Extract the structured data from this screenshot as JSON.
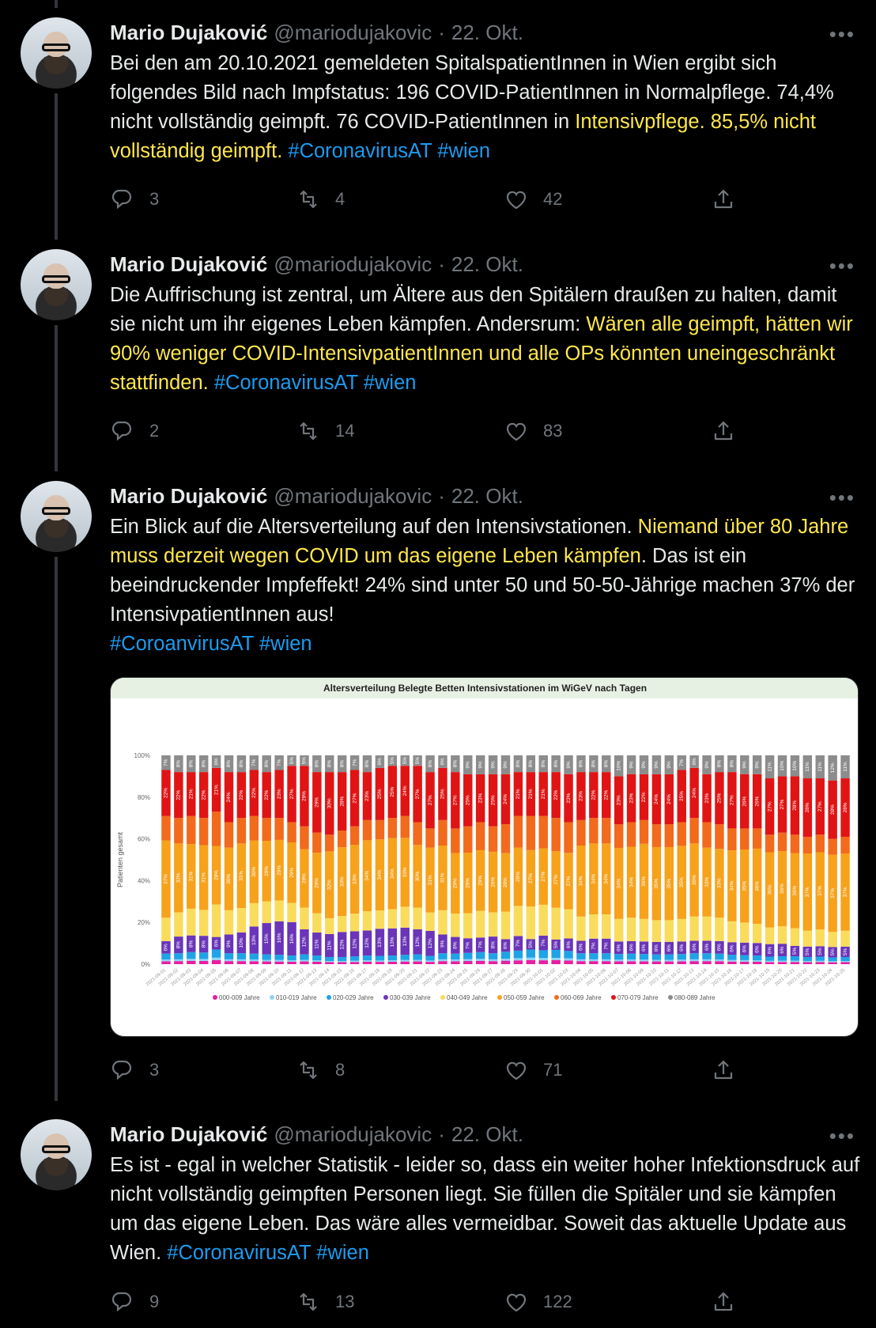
{
  "tweets": [
    {
      "author": "Mario Dujaković",
      "handle": "@mariodujakovic",
      "sep": "·",
      "date": "22. Okt.",
      "text_parts": [
        {
          "t": "Bei den am 20.10.2021 gemeldeten SpitalspatientInnen in Wien ergibt sich folgendes Bild nach Impfstatus: 196 COVID-PatientInnen in Normalpflege. 74,4% nicht vollständig geimpft. 76 COVID-PatientInnen in ",
          "s": "n"
        },
        {
          "t": "Intensivpflege. 85,5% nicht vollständig geimpft.",
          "s": "hl"
        },
        {
          "t": " ",
          "s": "n"
        },
        {
          "t": "#CoronavirusAT",
          "s": "tag"
        },
        {
          "t": " ",
          "s": "n"
        },
        {
          "t": "#wien",
          "s": "tag"
        }
      ],
      "replies": "3",
      "retweets": "4",
      "likes": "42"
    },
    {
      "author": "Mario Dujaković",
      "handle": "@mariodujakovic",
      "sep": "·",
      "date": "22. Okt.",
      "text_parts": [
        {
          "t": "Die Auffrischung ist zentral, um Ältere aus den Spitälern draußen zu halten, damit sie nicht um ihr eigenes Leben kämpfen. Andersrum: ",
          "s": "n"
        },
        {
          "t": "Wären alle geimpft, hätten wir 90% weniger COVID-IntensivpatientInnen und alle OPs könnten uneingeschränkt stattfinden.",
          "s": "hl"
        },
        {
          "t": " ",
          "s": "n"
        },
        {
          "t": "#CoronavirusAT",
          "s": "tag"
        },
        {
          "t": " ",
          "s": "n"
        },
        {
          "t": "#wien",
          "s": "tag"
        }
      ],
      "replies": "2",
      "retweets": "14",
      "likes": "83"
    },
    {
      "author": "Mario Dujaković",
      "handle": "@mariodujakovic",
      "sep": "·",
      "date": "22. Okt.",
      "text_parts": [
        {
          "t": "Ein Blick auf die Altersverteilung auf den Intensivstationen. ",
          "s": "n"
        },
        {
          "t": "Niemand über 80 Jahre muss derzeit wegen COVID um das eigene Leben kämpfen",
          "s": "hl"
        },
        {
          "t": ". Das ist ein beeindruckender Impfeffekt! 24% sind unter 50 und 50-50-Jährige machen 37% der IntensivpatientInnen aus!",
          "s": "n"
        },
        {
          "t": "BR",
          "s": "br"
        },
        {
          "t": "#CoroanvirusAT",
          "s": "tag"
        },
        {
          "t": " ",
          "s": "n"
        },
        {
          "t": "#wien",
          "s": "tag"
        }
      ],
      "replies": "3",
      "retweets": "8",
      "likes": "71"
    },
    {
      "author": "Mario Dujaković",
      "handle": "@mariodujakovic",
      "sep": "·",
      "date": "22. Okt.",
      "text_parts": [
        {
          "t": "Es ist - egal in welcher Statistik - leider so, dass ein weiter hoher Infektionsdruck auf nicht vollständig geimpften Personen liegt. Sie füllen die Spitäler und sie kämpfen um das eigene Leben. Das wäre alles vermeidbar. Soweit das aktuelle Update aus Wien. ",
          "s": "n"
        },
        {
          "t": "#CoronavirusAT",
          "s": "tag"
        },
        {
          "t": " ",
          "s": "n"
        },
        {
          "t": "#wien",
          "s": "tag"
        }
      ],
      "replies": "9",
      "retweets": "13",
      "likes": "122"
    }
  ],
  "icons": [
    "reply-icon",
    "retweet-icon",
    "like-icon",
    "share-icon",
    "more-icon"
  ],
  "colors": {
    "highlight": "#ffe74d",
    "hashtag": "#1d9bf0",
    "muted": "#71767b"
  },
  "chart_data": {
    "type": "bar",
    "title": "Altersverteilung Belegte Betten Intensivstationen im WiGeV nach Tagen",
    "ylabel": "Patienten gesamt",
    "ylim": [
      0,
      100
    ],
    "yticks": [
      "0%",
      "20%",
      "40%",
      "60%",
      "80%",
      "100%"
    ],
    "stacked": "percent",
    "legend_position": "bottom",
    "series_names": [
      "000-009 Jahre",
      "010-019 Jahre",
      "020-029 Jahre",
      "030-039 Jahre",
      "040-049 Jahre",
      "050-059 Jahre",
      "060-069 Jahre",
      "070-079 Jahre",
      "080-089 Jahre"
    ],
    "series_colors": [
      "#e91ea0",
      "#8fd3f4",
      "#1fa3e6",
      "#6a35b8",
      "#f9dc5c",
      "#f7a21b",
      "#f26a1b",
      "#e01414",
      "#8c8c8c"
    ],
    "bar_count": 55,
    "top_labels": [
      "7%",
      "8%",
      "8%",
      "8%",
      "6%",
      "8%",
      "8%",
      "7%",
      "8%",
      "7%",
      "5%",
      "5%",
      "8%",
      "8%",
      "8%",
      "7%",
      "8%",
      "6%",
      "5%",
      "5%",
      "5%",
      "8%",
      "6%",
      "8%",
      "9%",
      "9%",
      "9%",
      "9%",
      "8%",
      "8%",
      "8%",
      "8%",
      "9%",
      "8%",
      "8%",
      "8%",
      "10%",
      "9%",
      "9%",
      "9%",
      "9%",
      "7%",
      "6%",
      "9%",
      "8%",
      "8%",
      "9%",
      "9%",
      "11%",
      "10%",
      "10%",
      "11%",
      "11%",
      "12%",
      "11%"
    ],
    "age70_labels": [
      "22%",
      "22%",
      "21%",
      "22%",
      "21%",
      "24%",
      "22%",
      "22%",
      "22%",
      "23%",
      "27%",
      "29%",
      "29%",
      "30%",
      "28%",
      "27%",
      "23%",
      "25%",
      "25%",
      "24%",
      "27%",
      "27%",
      "25%",
      "27%",
      "25%",
      "23%",
      "25%",
      "24%",
      "21%",
      "21%",
      "21%",
      "22%",
      "23%",
      "23%",
      "22%",
      "22%",
      "23%",
      "23%",
      "22%",
      "24%",
      "24%",
      "25%",
      "24%",
      "23%",
      "25%",
      "27%",
      "26%",
      "26%",
      "27%",
      "27%",
      "28%",
      "28%",
      "27%",
      "28%",
      "28%"
    ],
    "age50_labels": [
      "37%",
      "33%",
      "31%",
      "31%",
      "28%",
      "30%",
      "31%",
      "30%",
      "29%",
      "29%",
      "29%",
      "28%",
      "29%",
      "32%",
      "33%",
      "33%",
      "34%",
      "34%",
      "34%",
      "33%",
      "30%",
      "31%",
      "31%",
      "29%",
      "29%",
      "29%",
      "29%",
      "28%",
      "28%",
      "27%",
      "27%",
      "27%",
      "27%",
      "34%",
      "34%",
      "34%",
      "34%",
      "34%",
      "36%",
      "35%",
      "35%",
      "35%",
      "35%",
      "33%",
      "33%",
      "34%",
      "35%",
      "36%",
      "36%",
      "36%",
      "36%",
      "37%",
      "37%",
      "37%",
      "37%"
    ],
    "age30_labels": [
      "6%",
      "8%",
      "8%",
      "8%",
      "6%",
      "9%",
      "10%",
      "13%",
      "15%",
      "16%",
      "16%",
      "12%",
      "11%",
      "11%",
      "12%",
      "12%",
      "12%",
      "13%",
      "13%",
      "13%",
      "12%",
      "12%",
      "9%",
      "8%",
      "7%",
      "7%",
      "8%",
      "6%",
      "7%",
      "5%",
      "7%",
      "5%",
      "6%",
      "6%",
      "7%",
      "7%",
      "6%",
      "6%",
      "6%",
      "6%",
      "6%",
      "6%",
      "6%",
      "6%",
      "6%",
      "6%",
      "6%",
      "6%",
      "6%",
      "6%",
      "5%",
      "5%",
      "5%",
      "5%",
      "5%"
    ],
    "x_dates": [
      "2021-09-01",
      "2021-09-02",
      "2021-09-03",
      "2021-09-04",
      "2021-09-05",
      "2021-09-06",
      "2021-09-07",
      "2021-09-08",
      "2021-09-09",
      "2021-09-10",
      "2021-09-11",
      "2021-09-12",
      "2021-09-13",
      "2021-09-14",
      "2021-09-15",
      "2021-09-16",
      "2021-09-17",
      "2021-09-18",
      "2021-09-19",
      "2021-09-20",
      "2021-09-21",
      "2021-09-22",
      "2021-09-23",
      "2021-09-24",
      "2021-09-25",
      "2021-09-26",
      "2021-09-27",
      "2021-09-28",
      "2021-09-29",
      "2021-09-30",
      "2021-10-01",
      "2021-10-02",
      "2021-10-03",
      "2021-10-04",
      "2021-10-05",
      "2021-10-06",
      "2021-10-07",
      "2021-10-08",
      "2021-10-09",
      "2021-10-10",
      "2021-10-11",
      "2021-10-12",
      "2021-10-13",
      "2021-10-14",
      "2021-10-15",
      "2021-10-16",
      "2021-10-17",
      "2021-10-18",
      "2021-10-19",
      "2021-10-20",
      "2021-10-21",
      "2021-10-22",
      "2021-10-23",
      "2021-10-24",
      "2021-10-25"
    ]
  }
}
